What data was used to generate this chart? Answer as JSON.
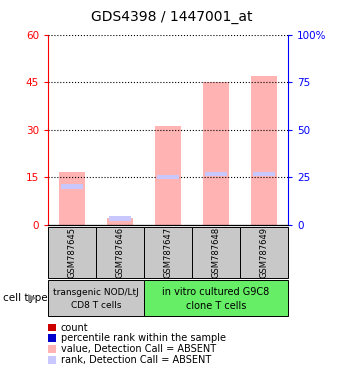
{
  "title": "GDS4398 / 1447001_at",
  "samples": [
    "GSM787645",
    "GSM787646",
    "GSM787647",
    "GSM787648",
    "GSM787649"
  ],
  "pink_bars": [
    16.5,
    2.0,
    31.0,
    45.0,
    47.0
  ],
  "blue_markers": [
    12.0,
    2.0,
    15.0,
    16.0,
    16.0
  ],
  "ylim_left": [
    0,
    60
  ],
  "ylim_right": [
    0,
    100
  ],
  "yticks_left": [
    0,
    15,
    30,
    45,
    60
  ],
  "yticks_right": [
    0,
    25,
    50,
    75,
    100
  ],
  "ytick_labels_right": [
    "0",
    "25",
    "50",
    "75",
    "100%"
  ],
  "group1_label_line1": "transgenic NOD/LtJ",
  "group1_label_line2": "CD8 T cells",
  "group2_label_line1": "in vitro cultured G9C8",
  "group2_label_line2": "clone T cells",
  "cell_type_label": "cell type",
  "legend_items": [
    {
      "color": "#cc0000",
      "label": "count"
    },
    {
      "color": "#0000cc",
      "label": "percentile rank within the sample"
    },
    {
      "color": "#ffb3b3",
      "label": "value, Detection Call = ABSENT"
    },
    {
      "color": "#c8c8ff",
      "label": "rank, Detection Call = ABSENT"
    }
  ],
  "bar_color": "#ffb3b3",
  "marker_color": "#c8c8ff",
  "group1_bg": "#c8c8c8",
  "group2_bg": "#66ee66",
  "title_fontsize": 10,
  "tick_fontsize": 7.5,
  "sample_fontsize": 6,
  "group_fontsize": 7,
  "legend_fontsize": 7
}
